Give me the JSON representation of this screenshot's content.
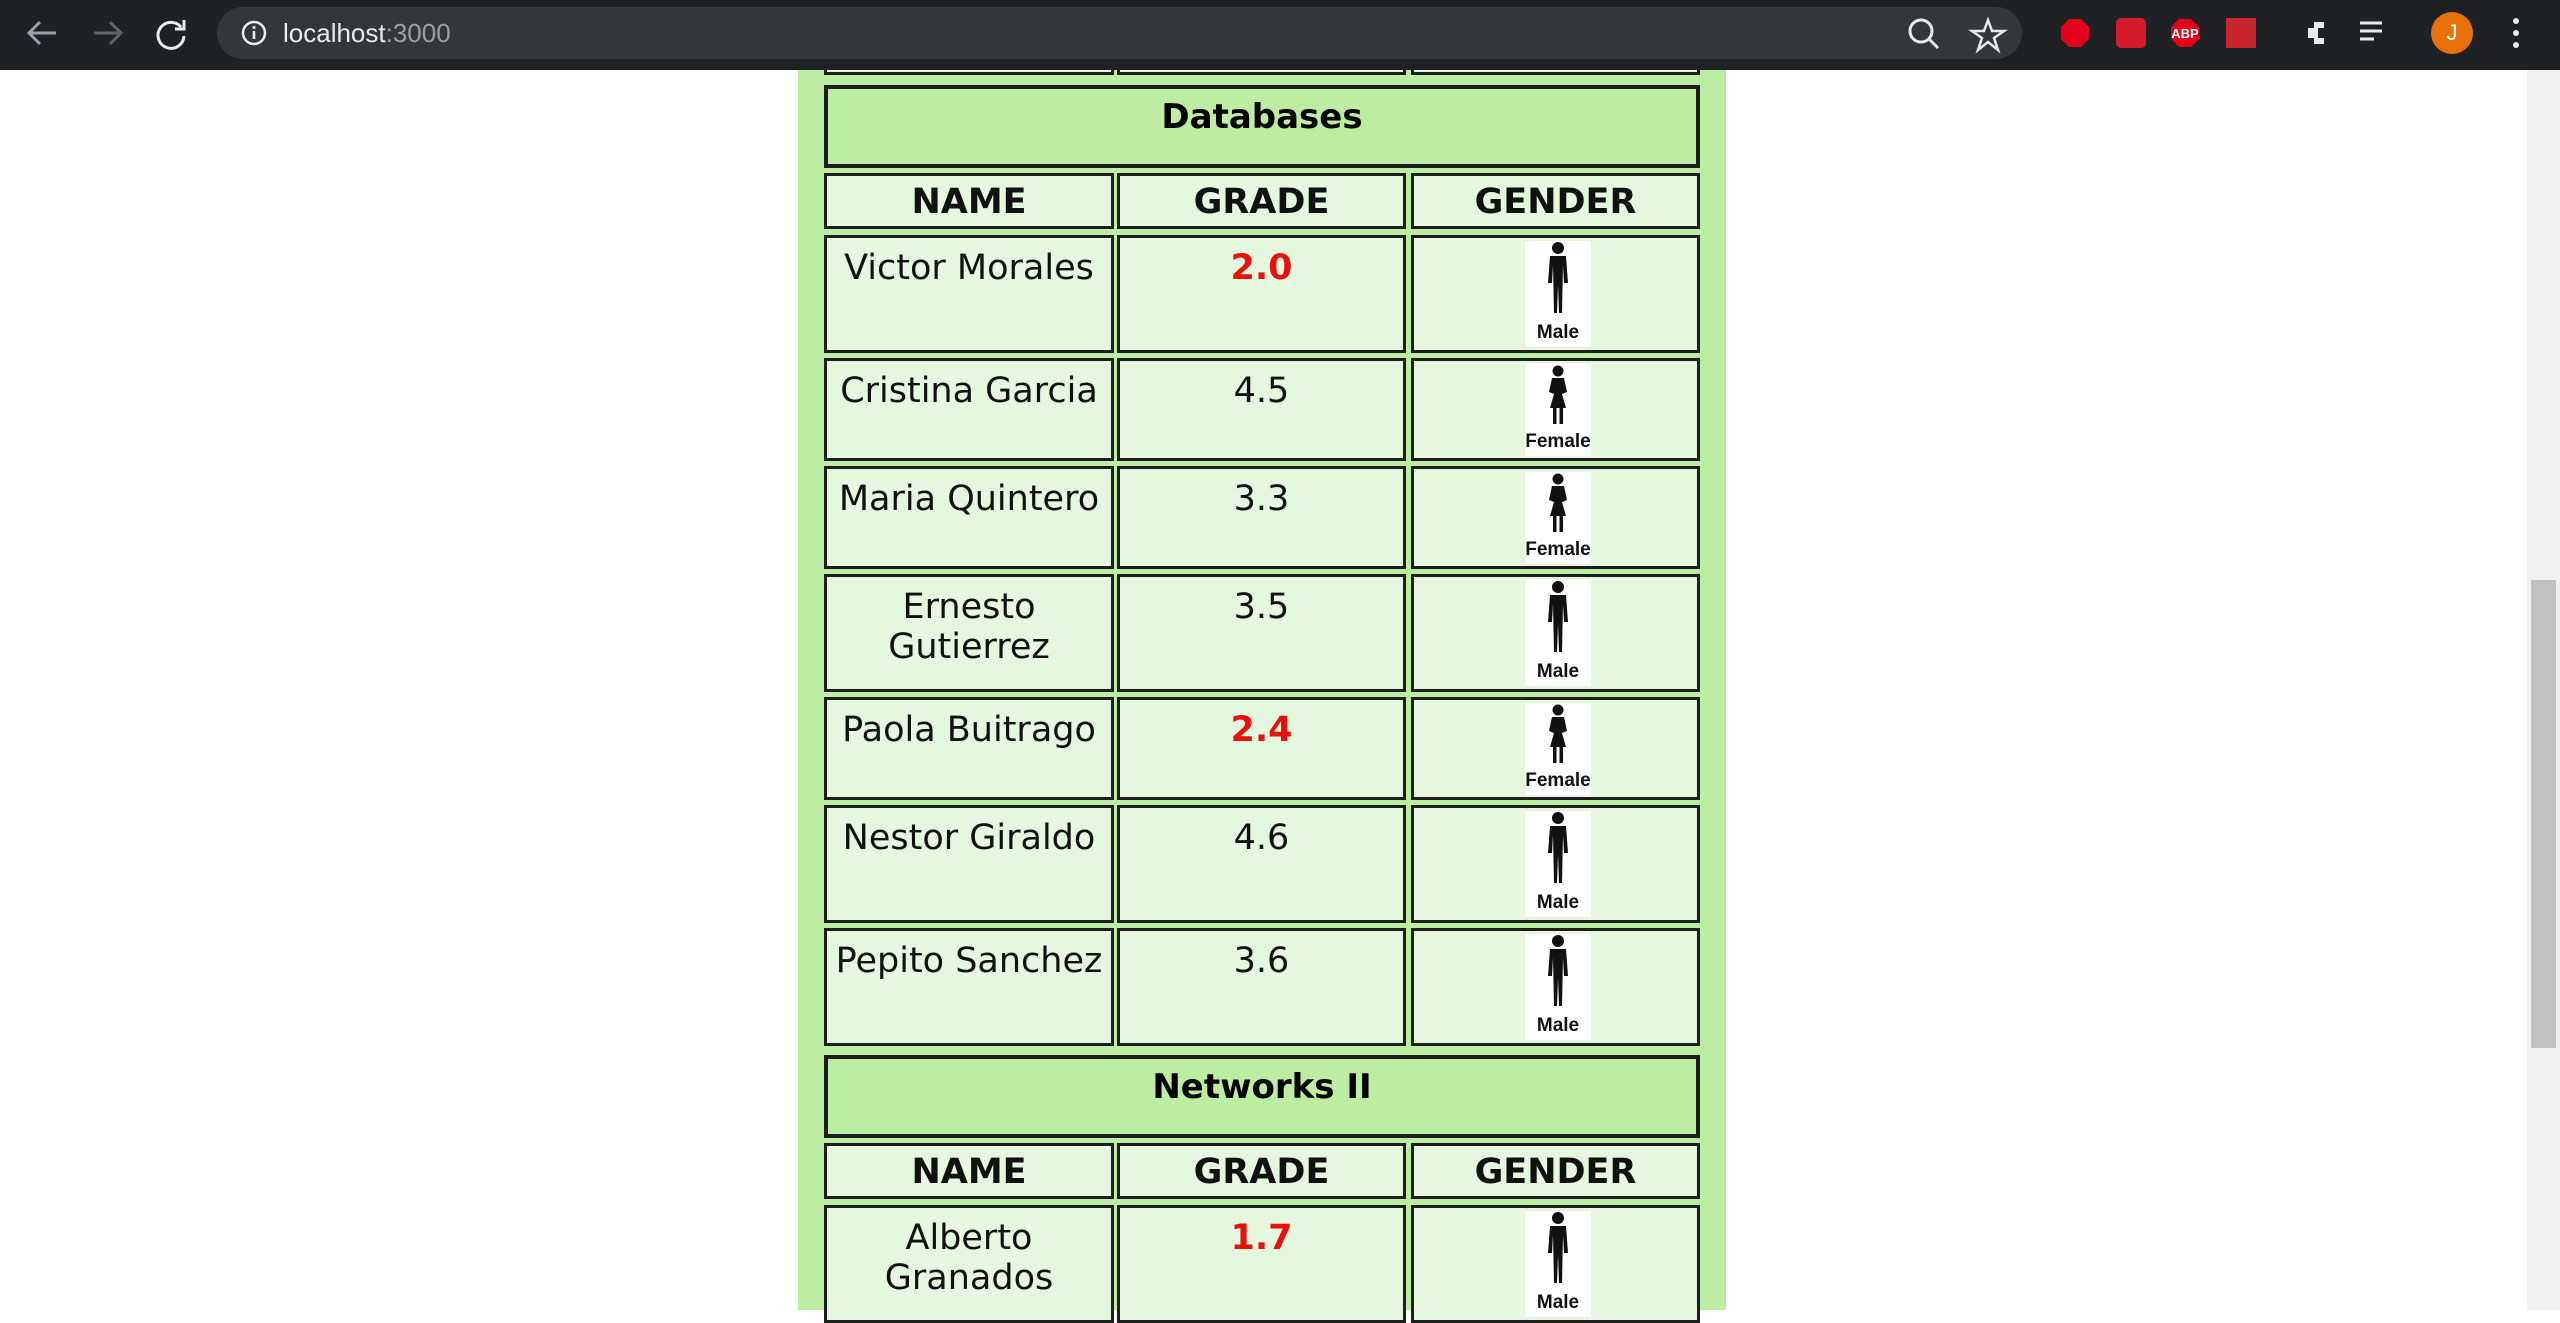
{
  "browser": {
    "url_host": "localhost",
    "url_port": ":3000",
    "profile_initial": "J"
  },
  "sections": [
    {
      "title": "Databases",
      "headers": [
        "NAME",
        "GRADE",
        "GENDER"
      ],
      "rows": [
        {
          "name": "Victor Morales",
          "grade": "2.0",
          "grade_color": "#e8120c",
          "gender": "Male"
        },
        {
          "name": "Cristina Garcia",
          "grade": "4.5",
          "grade_color": "#111111",
          "gender": "Female"
        },
        {
          "name": "Maria Quintero",
          "grade": "3.3",
          "grade_color": "#111111",
          "gender": "Female"
        },
        {
          "name": "Ernesto Gutierrez",
          "grade": "3.5",
          "grade_color": "#111111",
          "gender": "Male"
        },
        {
          "name": "Paola Buitrago",
          "grade": "2.4",
          "grade_color": "#e8120c",
          "gender": "Female"
        },
        {
          "name": "Nestor Giraldo",
          "grade": "4.6",
          "grade_color": "#111111",
          "gender": "Male"
        },
        {
          "name": "Pepito Sanchez",
          "grade": "3.6",
          "grade_color": "#111111",
          "gender": "Male"
        }
      ]
    },
    {
      "title": "Networks II",
      "headers": [
        "NAME",
        "GRADE",
        "GENDER"
      ],
      "rows": [
        {
          "name": "Alberto Granados",
          "grade": "1.7",
          "grade_color": "#e8120c",
          "gender": "Male"
        }
      ]
    }
  ]
}
